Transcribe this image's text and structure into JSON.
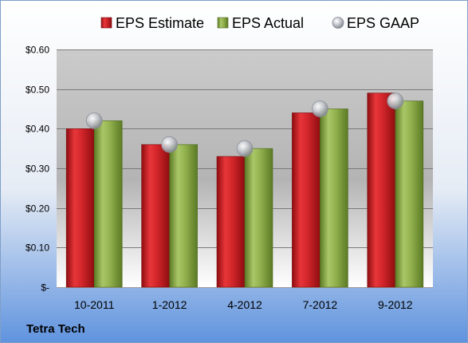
{
  "chart_data": {
    "type": "bar",
    "categories": [
      "10-2011",
      "1-2012",
      "4-2012",
      "7-2012",
      "9-2012"
    ],
    "series": [
      {
        "name": "EPS Estimate",
        "kind": "bar",
        "color": "#cc1f24",
        "values": [
          0.4,
          0.36,
          0.33,
          0.44,
          0.49
        ]
      },
      {
        "name": "EPS Actual",
        "kind": "bar",
        "color": "#8fb04a",
        "values": [
          0.42,
          0.36,
          0.35,
          0.45,
          0.47
        ]
      },
      {
        "name": "EPS GAAP",
        "kind": "marker",
        "color": "#b8bcc4",
        "values": [
          0.42,
          0.36,
          0.35,
          0.45,
          0.47
        ]
      }
    ],
    "ylim": [
      0,
      0.6
    ],
    "yticks": [
      0,
      0.1,
      0.2,
      0.3,
      0.4,
      0.5,
      0.6
    ],
    "ytick_labels": [
      "$-",
      "$0.10",
      "$0.20",
      "$0.30",
      "$0.40",
      "$0.50",
      "$0.60"
    ],
    "grid": true,
    "legend_position": "top"
  },
  "company": "Tetra Tech"
}
